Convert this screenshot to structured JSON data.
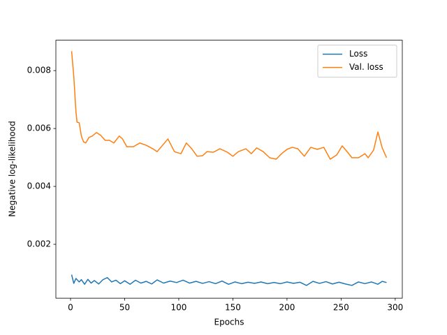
{
  "chart_data": {
    "type": "line",
    "xlabel": "Epochs",
    "ylabel": "Negative log-likelihood",
    "xlim": [
      -13.55,
      306.55
    ],
    "ylim": [
      0.00014,
      0.00905
    ],
    "xticks": [
      0,
      50,
      100,
      150,
      200,
      250,
      300
    ],
    "yticks": [
      0.002,
      0.004,
      0.006,
      0.008
    ],
    "grid": false,
    "legend": "upper right",
    "series": [
      {
        "name": "Loss",
        "color": "#1f77b4",
        "x": [
          1,
          3,
          5,
          8,
          10,
          13,
          16,
          19,
          22,
          26,
          30,
          34,
          38,
          42,
          46,
          50,
          55,
          60,
          65,
          70,
          75,
          80,
          86,
          92,
          98,
          104,
          110,
          116,
          122,
          128,
          134,
          140,
          146,
          152,
          158,
          164,
          170,
          176,
          182,
          188,
          194,
          200,
          206,
          212,
          218,
          224,
          230,
          236,
          242,
          248,
          254,
          260,
          266,
          272,
          278,
          284,
          288,
          292
        ],
        "values": [
          0.00095,
          0.00065,
          0.00082,
          0.0007,
          0.00078,
          0.00062,
          0.00079,
          0.00066,
          0.00075,
          0.00063,
          0.00078,
          0.00085,
          0.0007,
          0.00076,
          0.00064,
          0.00074,
          0.00062,
          0.00076,
          0.00066,
          0.00072,
          0.00063,
          0.00077,
          0.00066,
          0.00073,
          0.00068,
          0.00076,
          0.00066,
          0.00072,
          0.00065,
          0.00071,
          0.00064,
          0.00073,
          0.00062,
          0.0007,
          0.00064,
          0.00069,
          0.00065,
          0.0007,
          0.00064,
          0.00068,
          0.00064,
          0.0007,
          0.00065,
          0.00069,
          0.00058,
          0.00072,
          0.00065,
          0.00071,
          0.00063,
          0.00069,
          0.00063,
          0.00058,
          0.0007,
          0.00064,
          0.0007,
          0.00062,
          0.00072,
          0.00068
        ]
      },
      {
        "name": "Val. loss",
        "color": "#ff7f0e",
        "x": [
          1,
          3,
          5,
          6,
          8,
          10,
          12,
          14,
          17,
          20,
          24,
          28,
          32,
          36,
          40,
          45,
          48,
          52,
          58,
          64,
          70,
          76,
          80,
          85,
          90,
          96,
          102,
          107,
          112,
          117,
          122,
          126,
          132,
          138,
          145,
          150,
          155,
          162,
          167,
          172,
          178,
          184,
          190,
          195,
          200,
          205,
          210,
          216,
          222,
          228,
          234,
          240,
          246,
          251,
          256,
          260,
          266,
          272,
          275,
          280,
          284,
          288,
          292
        ],
        "values": [
          0.00867,
          0.0078,
          0.00658,
          0.00622,
          0.0062,
          0.00574,
          0.00554,
          0.0055,
          0.00569,
          0.00574,
          0.00586,
          0.00576,
          0.00559,
          0.00559,
          0.0055,
          0.00574,
          0.00564,
          0.00537,
          0.00537,
          0.0055,
          0.00542,
          0.0053,
          0.0052,
          0.00542,
          0.00564,
          0.0052,
          0.00513,
          0.0055,
          0.0053,
          0.00504,
          0.00506,
          0.0052,
          0.00518,
          0.0053,
          0.00518,
          0.00504,
          0.0052,
          0.0053,
          0.00513,
          0.00533,
          0.0052,
          0.00499,
          0.00494,
          0.00513,
          0.00528,
          0.00535,
          0.0053,
          0.00504,
          0.00535,
          0.00528,
          0.00535,
          0.00494,
          0.00509,
          0.0054,
          0.00518,
          0.00499,
          0.00499,
          0.00513,
          0.00499,
          0.00525,
          0.00588,
          0.00533,
          0.00499
        ]
      }
    ]
  }
}
